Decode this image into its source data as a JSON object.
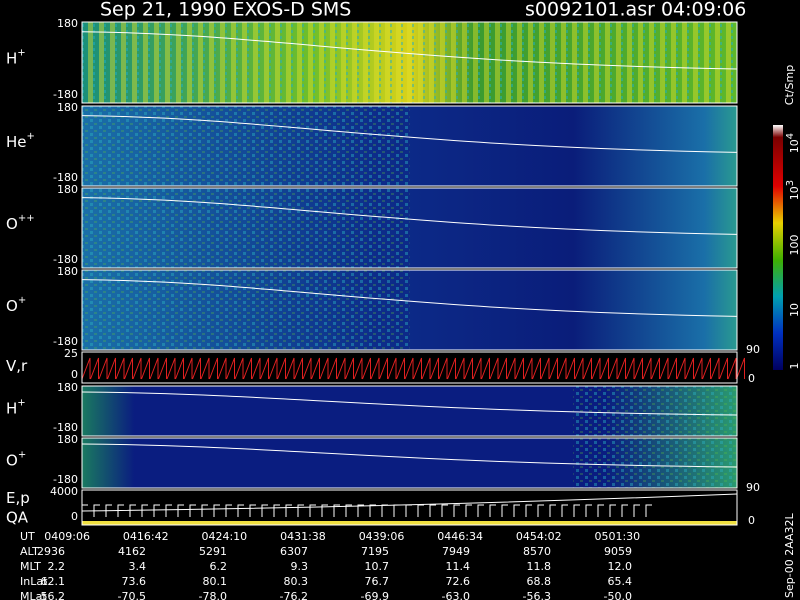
{
  "header": {
    "title": "Sep 21, 1990   EXOS-D SMS",
    "file_time": "s0092101.asr  04:09:06"
  },
  "panels": [
    {
      "label": "H",
      "sup": "+",
      "top": "180",
      "bottom": "-180"
    },
    {
      "label": "He",
      "sup": "+",
      "top": "180",
      "bottom": "-180"
    },
    {
      "label": "O",
      "sup": "++",
      "top": "180",
      "bottom": "-180"
    },
    {
      "label": "O",
      "sup": "+",
      "top": "180",
      "bottom": "-180"
    },
    {
      "label": "V,r",
      "top": "25",
      "bottom": "0",
      "right_top": "90",
      "right_bottom": "0"
    },
    {
      "label": "H",
      "sup": "+",
      "top": "180",
      "bottom": "-180"
    },
    {
      "label": "O",
      "sup": "+",
      "top": "180",
      "bottom": "-180"
    },
    {
      "label": "E,p",
      "label2": "QA",
      "top": "4000",
      "bottom": "0",
      "right_top": "90",
      "right_bottom": "0"
    }
  ],
  "colorbar": {
    "unit": "Ct/Smp",
    "ticks": [
      {
        "label": "10",
        "sup": "4"
      },
      {
        "label": "10",
        "sup": "3"
      },
      {
        "label": "100"
      },
      {
        "label": "10"
      },
      {
        "label": "1"
      }
    ]
  },
  "table": {
    "rows": [
      {
        "label": "UT",
        "values": [
          "0409:06",
          "0416:42",
          "0424:10",
          "0431:38",
          "0439:06",
          "0446:34",
          "0454:02",
          "0501:30"
        ]
      },
      {
        "label": "ALT",
        "values": [
          "2936",
          "4162",
          "5291",
          "6307",
          "7195",
          "7949",
          "8570",
          "9059"
        ]
      },
      {
        "label": "MLT",
        "values": [
          "2.2",
          "3.4",
          "6.2",
          "9.3",
          "10.7",
          "11.4",
          "11.8",
          "12.0"
        ]
      },
      {
        "label": "InLat",
        "values": [
          "62.1",
          "73.6",
          "80.1",
          "80.3",
          "76.7",
          "72.6",
          "68.8",
          "65.4"
        ]
      },
      {
        "label": "MLat",
        "values": [
          "-56.2",
          "-70.5",
          "-78.0",
          "-76.2",
          "-69.9",
          "-63.0",
          "-56.3",
          "-50.0"
        ]
      }
    ]
  },
  "footer": "Sep-00  2AA32L"
}
